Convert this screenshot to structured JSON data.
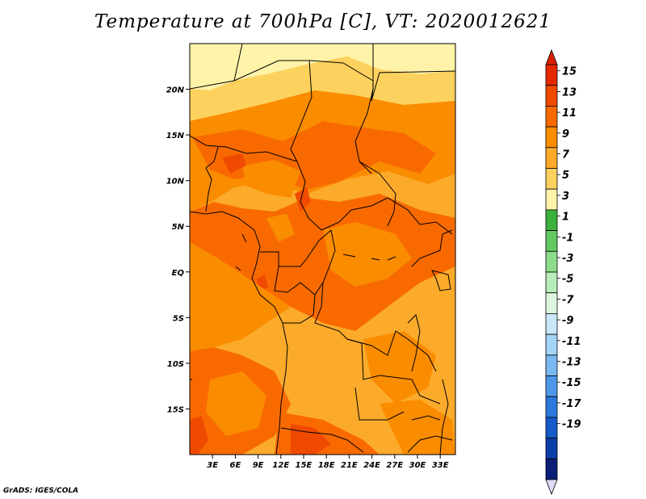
{
  "title": "Temperature at 700hPa [C], VT: 2020012621",
  "credit": "GrADS: IGES/COLA",
  "map": {
    "lon_labels": [
      "3E",
      "6E",
      "9E",
      "12E",
      "15E",
      "18E",
      "21E",
      "24E",
      "27E",
      "30E",
      "33E"
    ],
    "lat_labels": [
      "20N",
      "15N",
      "10N",
      "5N",
      "EQ",
      "5S",
      "10S",
      "15S"
    ],
    "lon_range": [
      0,
      35
    ],
    "lat_range": [
      -20,
      25
    ]
  },
  "colorbar": {
    "labels": [
      "15",
      "13",
      "11",
      "9",
      "7",
      "5",
      "3",
      "1",
      "-1",
      "-3",
      "-5",
      "-7",
      "-9",
      "-11",
      "-13",
      "-15",
      "-17",
      "-19"
    ],
    "colors": [
      "#e62800",
      "#f04a00",
      "#f86a00",
      "#fa8c00",
      "#fcaa2a",
      "#fdd15e",
      "#fef3a8",
      "#3cb03c",
      "#62c862",
      "#8cdc8c",
      "#b8ecb8",
      "#def6de",
      "#c8e8fa",
      "#a4d4f8",
      "#7ab8f2",
      "#4e98ea",
      "#2c78dc",
      "#145ac8",
      "#0c3ea8",
      "#0a1e78"
    ],
    "arrow_top_color": "#dc1e00",
    "arrow_bottom_color": "#dcdcfa"
  }
}
